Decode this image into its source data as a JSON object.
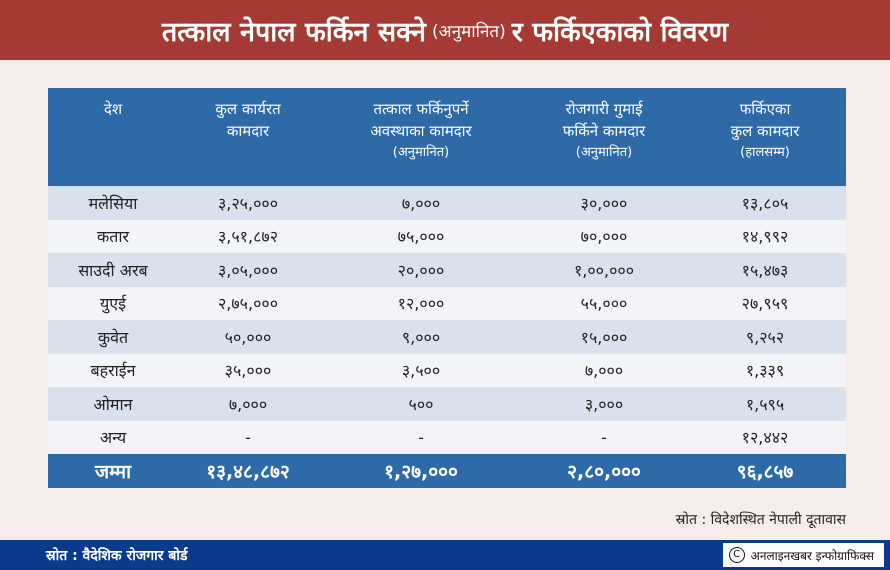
{
  "title": {
    "part1": "तत्काल नेपाल फर्किन सक्ने",
    "part2": "(अनुमानित)",
    "part3": "र फर्किएकाको विवरण"
  },
  "table": {
    "headers": [
      {
        "lines": [
          "देश"
        ],
        "sub": ""
      },
      {
        "lines": [
          "कुल कार्यरत",
          "कामदार"
        ],
        "sub": ""
      },
      {
        "lines": [
          "तत्काल फर्किनुपर्ने",
          "अवस्थाका कामदार"
        ],
        "sub": "(अनुमानित)"
      },
      {
        "lines": [
          "रोजगारी गुमाई",
          "फर्किने कामदार"
        ],
        "sub": "(अनुमानित)"
      },
      {
        "lines": [
          "फर्किएका",
          "कुल कामदार"
        ],
        "sub": "(हालसम्म)"
      }
    ],
    "rows": [
      [
        "मलेसिया",
        "३,२५,०००",
        "७,०००",
        "३०,०००",
        "१३,८०५"
      ],
      [
        "कतार",
        "३,५१,८७२",
        "७५,०००",
        "७०,०००",
        "१४,९९२"
      ],
      [
        "साउदी अरब",
        "३,०५,०००",
        "२०,०००",
        "१,००,०००",
        "१५,४७३"
      ],
      [
        "युएई",
        "२,७५,०००",
        "१२,०००",
        "५५,०००",
        "२७,९५९"
      ],
      [
        "कुवेत",
        "५०,०००",
        "९,०००",
        "१५,०००",
        "९,२५२"
      ],
      [
        "बहराईन",
        "३५,०००",
        "३,५००",
        "७,०००",
        "१,३३९"
      ],
      [
        "ओमान",
        "७,०००",
        "५००",
        "३,०००",
        "१,५९५"
      ],
      [
        "अन्य",
        "-",
        "-",
        "-",
        "१२,४४२"
      ]
    ],
    "total": [
      "जम्मा",
      "१३,४८,८७२",
      "१,२७,०००",
      "२,८०,०००",
      "९६,८५७"
    ]
  },
  "source_inner": "स्रोत : विदेशस्थित नेपाली दूतावास",
  "footer": {
    "source": "स्रोत : वैदेशिक रोजगार बोर्ड",
    "credit": "अनलाइनखबर इन्फोग्राफिक्स",
    "copyright_symbol": "C"
  },
  "colors": {
    "title_bg": "#a53a35",
    "table_header_bg": "#2e6aa8",
    "row_stripe": "#d8e1ec",
    "footer_bg": "#0b3a8a"
  }
}
